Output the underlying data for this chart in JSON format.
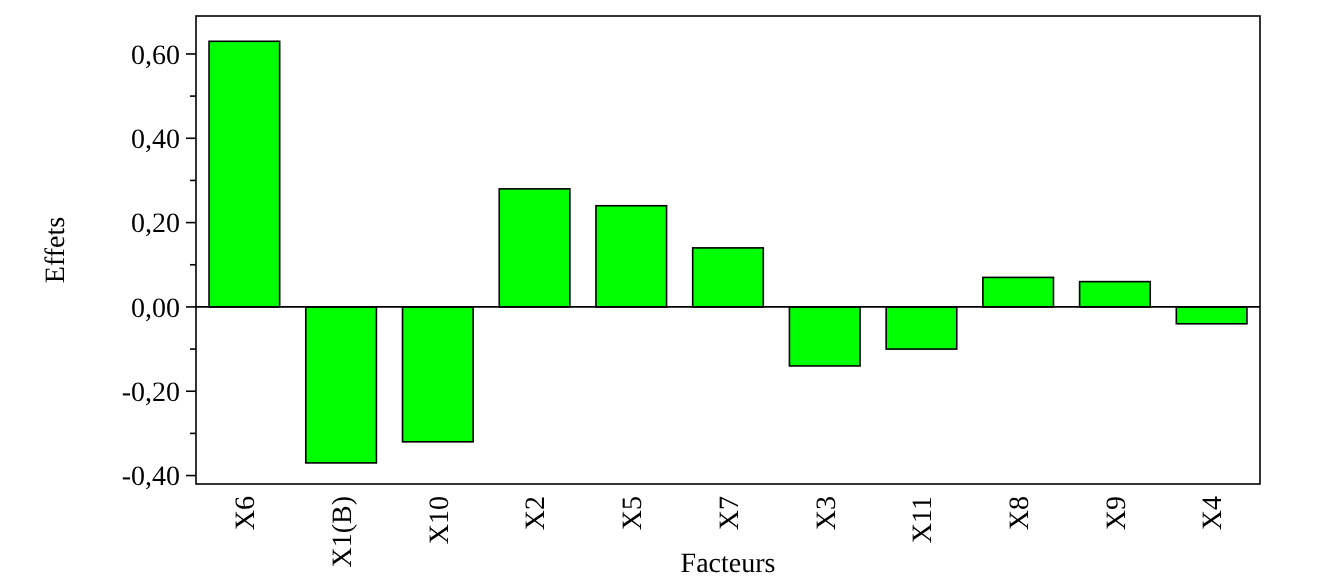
{
  "chart_data": {
    "type": "bar",
    "xlabel": "Facteurs",
    "ylabel": "Effets",
    "categories": [
      "X6",
      "X1(B)",
      "X10",
      "X2",
      "X5",
      "X7",
      "X3",
      "X11",
      "X8",
      "X9",
      "X4"
    ],
    "values": [
      0.63,
      -0.37,
      -0.32,
      0.28,
      0.24,
      0.14,
      -0.14,
      -0.1,
      0.07,
      0.06,
      -0.04
    ],
    "color": "#00ff00",
    "ylim": [
      -0.42,
      0.69
    ],
    "yticks": [
      {
        "value": -0.4,
        "label": "-0,40"
      },
      {
        "value": -0.3,
        "label": null
      },
      {
        "value": -0.2,
        "label": "-0,20"
      },
      {
        "value": -0.1,
        "label": null
      },
      {
        "value": 0,
        "label": "0,00"
      },
      {
        "value": 0.1,
        "label": null
      },
      {
        "value": 0.2,
        "label": "0,20"
      },
      {
        "value": 0.3,
        "label": null
      },
      {
        "value": 0.4,
        "label": "0,40"
      },
      {
        "value": 0.5,
        "label": null
      },
      {
        "value": 0.6,
        "label": "0,60"
      }
    ],
    "ref_lines": [
      {
        "axis": "y",
        "value": 0,
        "color": "#000000"
      }
    ]
  }
}
